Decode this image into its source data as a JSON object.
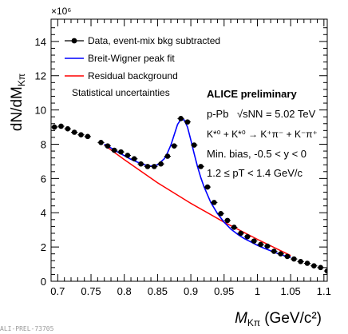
{
  "chart_data": {
    "type": "scatter",
    "xlabel_main": "M",
    "xlabel_sub": "Kπ",
    "xlabel_unit": "(GeV/c²)",
    "ylabel": "dN/dM",
    "ylabel_sub": "Kπ",
    "y_multiplier": "×10⁶",
    "xlim": [
      0.69,
      1.105
    ],
    "ylim": [
      0,
      15.3
    ],
    "x_ticks": [
      0.7,
      0.75,
      0.8,
      0.85,
      0.9,
      0.95,
      1,
      1.05,
      1.1
    ],
    "x_tick_labels": [
      "0.7",
      "0.75",
      "0.8",
      "0.85",
      "0.9",
      "0.95",
      "1",
      "1.05",
      "1.1"
    ],
    "y_ticks": [
      0,
      2,
      4,
      6,
      8,
      10,
      12,
      14
    ],
    "y_tick_labels": [
      "0",
      "2",
      "4",
      "6",
      "8",
      "10",
      "12",
      "14"
    ],
    "legend": {
      "position": "top-left",
      "entries": [
        {
          "label": "Data, event-mix bkg subtracted",
          "style": "marker",
          "color": "#000000"
        },
        {
          "label": "Breit-Wigner peak fit",
          "style": "line",
          "color": "#0000ff"
        },
        {
          "label": "Residual background",
          "style": "line",
          "color": "#ff0000"
        }
      ]
    },
    "annotations": {
      "stat_note": "Statistical uncertainties",
      "title": "ALICE preliminary",
      "system": "p-Pb",
      "energy": "√sNN = 5.02 TeV",
      "decay": "K*⁰ + K*⁰ → K⁺π⁻ + K⁻π⁺",
      "selection": "Min. bias, -0.5 < y < 0",
      "pt_range": "1.2 ≤ pT < 1.4 GeV/c"
    },
    "figure_id": "ALI-PREL-73705",
    "series": [
      {
        "name": "Data, event-mix bkg subtracted",
        "color": "#000000",
        "x": [
          0.695,
          0.705,
          0.715,
          0.725,
          0.735,
          0.745,
          0.765,
          0.775,
          0.785,
          0.795,
          0.805,
          0.815,
          0.825,
          0.835,
          0.845,
          0.855,
          0.865,
          0.875,
          0.885,
          0.895,
          0.905,
          0.915,
          0.925,
          0.935,
          0.945,
          0.955,
          0.965,
          0.975,
          0.985,
          0.995,
          1.005,
          1.015,
          1.025,
          1.035,
          1.045,
          1.055,
          1.065,
          1.075,
          1.085,
          1.095,
          1.105
        ],
        "y": [
          9.0,
          9.05,
          8.9,
          8.7,
          8.55,
          8.45,
          8.1,
          7.9,
          7.65,
          7.55,
          7.35,
          7.15,
          6.85,
          6.7,
          6.7,
          6.85,
          7.3,
          7.9,
          9.5,
          9.3,
          7.95,
          6.7,
          5.5,
          4.6,
          3.95,
          3.55,
          3.15,
          2.8,
          2.6,
          2.35,
          2.15,
          2.05,
          1.75,
          1.6,
          1.45,
          1.3,
          1.15,
          1.05,
          0.9,
          0.8,
          0.6
        ]
      },
      {
        "name": "Breit-Wigner peak fit",
        "color": "#0000ff",
        "x": [
          0.77,
          0.78,
          0.79,
          0.8,
          0.81,
          0.82,
          0.83,
          0.84,
          0.85,
          0.86,
          0.865,
          0.87,
          0.875,
          0.88,
          0.885,
          0.89,
          0.895,
          0.9,
          0.905,
          0.91,
          0.915,
          0.92,
          0.93,
          0.94,
          0.95,
          0.96,
          0.97,
          0.98,
          0.99,
          1.0,
          1.01,
          1.02,
          1.03,
          1.04,
          1.05
        ],
        "y": [
          8.0,
          7.78,
          7.55,
          7.33,
          7.12,
          6.95,
          6.8,
          6.72,
          6.8,
          7.15,
          7.5,
          7.95,
          8.55,
          9.15,
          9.45,
          9.42,
          9.0,
          8.25,
          7.45,
          6.7,
          6.05,
          5.5,
          4.6,
          3.95,
          3.45,
          3.05,
          2.75,
          2.5,
          2.3,
          2.1,
          1.93,
          1.78,
          1.63,
          1.5,
          1.38
        ]
      },
      {
        "name": "Residual background",
        "color": "#ff0000",
        "x": [
          0.77,
          0.8,
          0.85,
          0.9,
          0.95,
          1.0,
          1.05
        ],
        "y": [
          7.95,
          7.1,
          5.75,
          4.55,
          3.45,
          2.45,
          1.5
        ]
      }
    ]
  }
}
